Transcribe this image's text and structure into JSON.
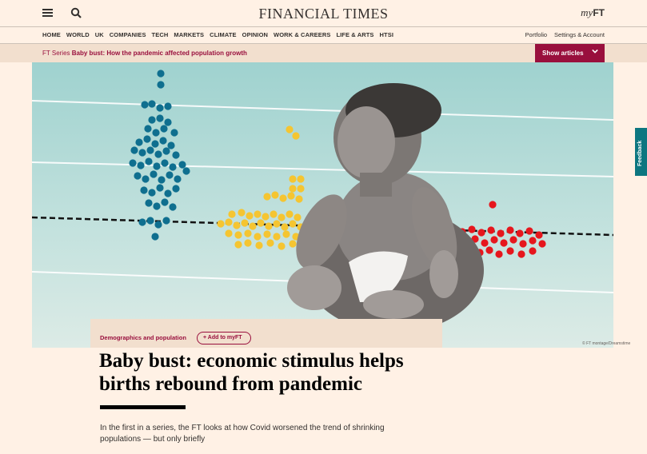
{
  "header": {
    "logo": "FINANCIAL TIMES",
    "myft_prefix": "my",
    "myft_suffix": "FT"
  },
  "nav": {
    "items": [
      "HOME",
      "WORLD",
      "UK",
      "COMPANIES",
      "TECH",
      "MARKETS",
      "CLIMATE",
      "OPINION",
      "WORK & CAREERS",
      "LIFE & ARTS",
      "HTSI"
    ],
    "right": [
      "Portfolio",
      "Settings & Account"
    ]
  },
  "series": {
    "prefix": "FT Series",
    "title": "Baby bust: How the pandemic affected population growth",
    "button": "Show articles"
  },
  "hero": {
    "credit": "© FT montage/Dreamstime",
    "colors": {
      "teal": "#0f6f8f",
      "yellow": "#f5c531",
      "red": "#e6161d"
    }
  },
  "feedback": "Feedback",
  "article": {
    "topic": "Demographics and population",
    "add_myft": "+ Add to myFT",
    "headline": "Baby bust: economic stimulus helps births rebound from pandemic",
    "standfirst": "In the first in a series, the FT looks at how Covid worsened the trend of shrinking populations — but only briefly"
  }
}
